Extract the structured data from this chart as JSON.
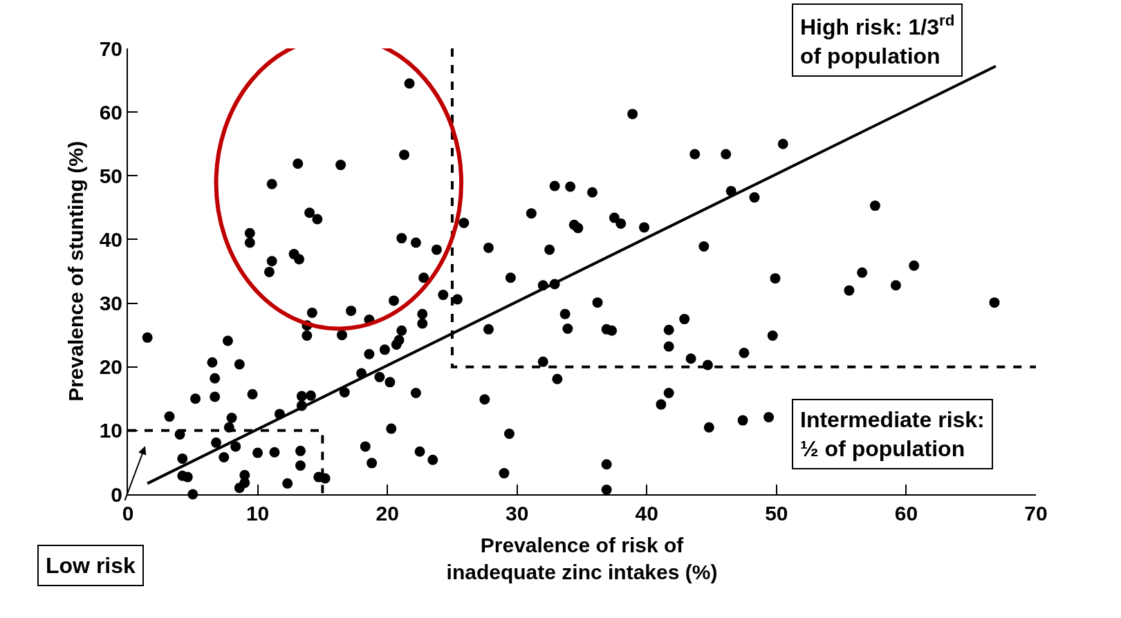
{
  "chart_data": {
    "type": "scatter",
    "xlabel": "Prevalence of risk of\ninadequate zinc intakes (%)",
    "ylabel": "Prevalence of stunting (%)",
    "xlim": [
      0,
      70
    ],
    "ylim": [
      0,
      70
    ],
    "xticks": [
      0,
      10,
      20,
      30,
      40,
      50,
      60,
      70
    ],
    "yticks": [
      0,
      10,
      20,
      30,
      40,
      50,
      60,
      70
    ],
    "annotations": [
      "High risk: 1/3$^{rd}$\nof population",
      "Intermediate risk:\n½ of population",
      "Low risk"
    ],
    "series": [
      {
        "color": "#000000",
        "marker": "circle",
        "x": [
          1.5,
          3.2,
          4.0,
          4.2,
          4.2,
          4.6,
          5.0,
          5.2,
          6.5,
          6.7,
          6.7,
          6.8,
          7.4,
          7.7,
          7.8,
          8.0,
          8.3,
          8.6,
          8.6,
          9.0,
          9.0,
          9.4,
          9.4,
          9.6,
          10.0,
          11.1,
          10.9,
          11.1,
          11.3,
          11.7,
          12.3,
          12.8,
          13.2,
          13.1,
          13.3,
          13.3,
          13.4,
          13.4,
          13.8,
          14.0,
          14.6,
          14.2,
          13.8,
          14.1,
          14.7,
          15.2,
          16.4,
          16.5,
          16.7,
          17.2,
          18.0,
          18.3,
          18.6,
          18.6,
          18.8,
          19.4,
          19.8,
          20.2,
          20.3,
          20.5,
          20.7,
          20.9,
          21.1,
          21.1,
          21.3,
          21.7,
          22.2,
          22.2,
          22.5,
          22.7,
          22.7,
          22.8,
          23.5,
          23.8,
          24.3,
          25.4,
          25.9,
          27.5,
          27.8,
          27.8,
          29.0,
          29.4,
          29.5,
          31.1,
          32.0,
          32.0,
          32.5,
          32.9,
          32.9,
          33.1,
          33.7,
          33.9,
          34.1,
          34.4,
          34.7,
          35.8,
          36.2,
          36.9,
          36.9,
          36.9,
          37.3,
          37.5,
          38.0,
          38.9,
          39.8,
          41.1,
          41.7,
          41.7,
          41.7,
          42.9,
          43.4,
          43.7,
          44.4,
          44.7,
          44.8,
          46.1,
          46.5,
          47.4,
          47.5,
          48.3,
          49.4,
          49.7,
          49.9,
          50.5,
          55.6,
          56.6,
          57.6,
          59.2,
          60.6,
          66.8
        ],
        "values": [
          24.6,
          12.2,
          9.4,
          5.6,
          2.9,
          2.7,
          0,
          15.0,
          20.7,
          18.2,
          15.3,
          8.1,
          5.8,
          24.1,
          10.5,
          12.0,
          7.5,
          20.4,
          1.0,
          3.0,
          1.8,
          41.0,
          39.5,
          15.7,
          6.5,
          36.6,
          34.9,
          48.7,
          6.6,
          12.6,
          1.7,
          37.7,
          36.9,
          51.9,
          6.8,
          4.5,
          13.9,
          15.4,
          24.9,
          44.2,
          43.2,
          28.5,
          26.5,
          15.5,
          2.7,
          2.5,
          51.7,
          25.0,
          16.0,
          28.8,
          19.0,
          7.5,
          27.4,
          22.0,
          4.9,
          18.4,
          22.7,
          17.6,
          10.3,
          30.4,
          23.5,
          24.2,
          25.7,
          40.2,
          53.3,
          64.5,
          39.5,
          15.9,
          6.7,
          26.8,
          28.3,
          34.0,
          5.4,
          38.4,
          31.3,
          30.6,
          42.6,
          14.9,
          25.9,
          38.7,
          3.3,
          9.5,
          34.0,
          44.1,
          32.8,
          20.8,
          38.4,
          48.4,
          33.0,
          18.1,
          28.3,
          26.0,
          48.3,
          42.3,
          41.8,
          47.4,
          30.1,
          4.7,
          0.7,
          25.9,
          25.7,
          43.4,
          42.5,
          59.7,
          41.9,
          14.1,
          15.9,
          25.8,
          23.2,
          27.5,
          21.3,
          53.4,
          38.9,
          20.3,
          10.5,
          53.4,
          47.6,
          11.6,
          22.2,
          46.6,
          12.1,
          24.9,
          33.9,
          55.0,
          32.0,
          34.8,
          45.3,
          32.8,
          35.9,
          30.1
        ]
      },
      {
        "type": "line",
        "color": "#000000",
        "x": [
          1.5,
          66.9
        ],
        "values": [
          1.7,
          67.2
        ]
      },
      {
        "type": "line",
        "color": "#000000",
        "line_style": "dashed",
        "x": [
          0,
          15,
          15
        ],
        "values": [
          10,
          10,
          0
        ]
      },
      {
        "type": "line",
        "color": "#000000",
        "line_style": "dashed",
        "x": [
          25,
          25,
          70
        ],
        "values": [
          70,
          20,
          20
        ]
      }
    ]
  }
}
